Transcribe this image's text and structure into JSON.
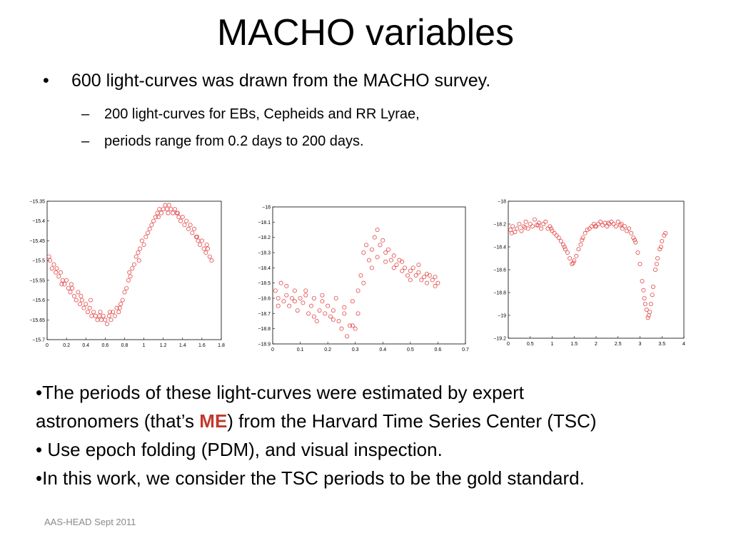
{
  "slide": {
    "title": "MACHO variables",
    "bullet_main": {
      "marker": "•",
      "text": "600 light-curves was drawn from the MACHO survey."
    },
    "sub_bullets": [
      {
        "marker": "–",
        "text": "200 light-curves for EBs, Cepheids and RR Lyrae,"
      },
      {
        "marker": "–",
        "text": "periods range from 0.2 days to 200 days."
      }
    ],
    "body": {
      "line1": "•The periods of these light-curves were estimated by expert",
      "line2_before": "astronomers (that’s ",
      "line2_me": "ME",
      "line2_after": ") from the Harvard Time Series Center (TSC)",
      "line3": "• Use epoch folding (PDM), and visual inspection.",
      "line4": "•In this work, we consider the TSC periods to be the gold standard."
    },
    "footer": "AAS-HEAD Sept 2011"
  },
  "chart_data": [
    {
      "type": "scatter",
      "marker_color": "#e34a4a",
      "xlim": [
        0,
        1.8
      ],
      "ylim": [
        -15.7,
        -15.35
      ],
      "y_inverted": true,
      "xticks": [
        "0",
        "0.2",
        "0.4",
        "0.6",
        "0.8",
        "1",
        "1.2",
        "1.4",
        "1.6",
        "1.8"
      ],
      "yticks": [
        "−15.35",
        "−15.4",
        "−15.45",
        "−15.5",
        "−15.55",
        "−15.6",
        "−15.65",
        "−15.7"
      ],
      "xtick_values": [
        0,
        0.2,
        0.4,
        0.6,
        0.8,
        1,
        1.2,
        1.4,
        1.6,
        1.8
      ],
      "ytick_values": [
        -15.35,
        -15.4,
        -15.45,
        -15.5,
        -15.55,
        -15.6,
        -15.65,
        -15.7
      ],
      "points": [
        [
          0.02,
          -15.49
        ],
        [
          0.03,
          -15.5
        ],
        [
          0.05,
          -15.52
        ],
        [
          0.07,
          -15.51
        ],
        [
          0.09,
          -15.53
        ],
        [
          0.1,
          -15.52
        ],
        [
          0.12,
          -15.54
        ],
        [
          0.14,
          -15.53
        ],
        [
          0.16,
          -15.55
        ],
        [
          0.18,
          -15.56
        ],
        [
          0.2,
          -15.55
        ],
        [
          0.22,
          -15.57
        ],
        [
          0.24,
          -15.58
        ],
        [
          0.26,
          -15.57
        ],
        [
          0.28,
          -15.59
        ],
        [
          0.3,
          -15.6
        ],
        [
          0.32,
          -15.58
        ],
        [
          0.34,
          -15.61
        ],
        [
          0.36,
          -15.6
        ],
        [
          0.38,
          -15.62
        ],
        [
          0.4,
          -15.61
        ],
        [
          0.42,
          -15.63
        ],
        [
          0.44,
          -15.62
        ],
        [
          0.46,
          -15.64
        ],
        [
          0.48,
          -15.63
        ],
        [
          0.5,
          -15.64
        ],
        [
          0.52,
          -15.65
        ],
        [
          0.54,
          -15.64
        ],
        [
          0.56,
          -15.65
        ],
        [
          0.58,
          -15.64
        ],
        [
          0.6,
          -15.65
        ],
        [
          0.62,
          -15.66
        ],
        [
          0.64,
          -15.64
        ],
        [
          0.66,
          -15.65
        ],
        [
          0.68,
          -15.63
        ],
        [
          0.7,
          -15.64
        ],
        [
          0.72,
          -15.62
        ],
        [
          0.74,
          -15.63
        ],
        [
          0.76,
          -15.61
        ],
        [
          0.78,
          -15.6
        ],
        [
          0.8,
          -15.58
        ],
        [
          0.82,
          -15.57
        ],
        [
          0.84,
          -15.55
        ],
        [
          0.86,
          -15.54
        ],
        [
          0.88,
          -15.52
        ],
        [
          0.9,
          -15.51
        ],
        [
          0.92,
          -15.49
        ],
        [
          0.94,
          -15.48
        ],
        [
          0.96,
          -15.47
        ],
        [
          0.98,
          -15.45
        ],
        [
          1.0,
          -15.46
        ],
        [
          1.02,
          -15.44
        ],
        [
          1.04,
          -15.43
        ],
        [
          1.06,
          -15.42
        ],
        [
          1.08,
          -15.41
        ],
        [
          1.1,
          -15.4
        ],
        [
          1.12,
          -15.39
        ],
        [
          1.14,
          -15.38
        ],
        [
          1.16,
          -15.37
        ],
        [
          1.18,
          -15.38
        ],
        [
          1.2,
          -15.37
        ],
        [
          1.22,
          -15.36
        ],
        [
          1.24,
          -15.37
        ],
        [
          1.26,
          -15.36
        ],
        [
          1.28,
          -15.37
        ],
        [
          1.3,
          -15.38
        ],
        [
          1.32,
          -15.37
        ],
        [
          1.34,
          -15.38
        ],
        [
          1.36,
          -15.39
        ],
        [
          1.38,
          -15.4
        ],
        [
          1.4,
          -15.39
        ],
        [
          1.42,
          -15.41
        ],
        [
          1.44,
          -15.4
        ],
        [
          1.46,
          -15.42
        ],
        [
          1.48,
          -15.41
        ],
        [
          1.5,
          -15.43
        ],
        [
          1.52,
          -15.42
        ],
        [
          1.54,
          -15.44
        ],
        [
          1.56,
          -15.45
        ],
        [
          1.58,
          -15.46
        ],
        [
          1.6,
          -15.45
        ],
        [
          1.62,
          -15.47
        ],
        [
          1.64,
          -15.48
        ],
        [
          1.66,
          -15.47
        ],
        [
          1.68,
          -15.49
        ],
        [
          1.7,
          -15.5
        ],
        [
          0.15,
          -15.56
        ],
        [
          0.35,
          -15.59
        ],
        [
          0.55,
          -15.63
        ],
        [
          0.75,
          -15.62
        ],
        [
          0.95,
          -15.5
        ],
        [
          1.15,
          -15.39
        ],
        [
          1.35,
          -15.38
        ],
        [
          1.55,
          -15.44
        ],
        [
          1.65,
          -15.46
        ],
        [
          0.25,
          -15.56
        ],
        [
          0.45,
          -15.6
        ],
        [
          0.65,
          -15.63
        ],
        [
          0.85,
          -15.53
        ],
        [
          1.25,
          -15.38
        ]
      ]
    },
    {
      "type": "scatter",
      "marker_color": "#e34a4a",
      "xlim": [
        0,
        0.7
      ],
      "ylim": [
        -18.9,
        -18
      ],
      "y_inverted": true,
      "xticks": [
        "0",
        "0.1",
        "0.2",
        "0.3",
        "0.4",
        "0.5",
        "0.6",
        "0.7"
      ],
      "yticks": [
        "−18",
        "−18.1",
        "−18.2",
        "−18.3",
        "−18.4",
        "−18.5",
        "−18.6",
        "−18.7",
        "−18.8",
        "−18.9"
      ],
      "xtick_values": [
        0,
        0.1,
        0.2,
        0.3,
        0.4,
        0.5,
        0.6,
        0.7
      ],
      "ytick_values": [
        -18,
        -18.1,
        -18.2,
        -18.3,
        -18.4,
        -18.5,
        -18.6,
        -18.7,
        -18.8,
        -18.9
      ],
      "points": [
        [
          0.01,
          -18.55
        ],
        [
          0.02,
          -18.6
        ],
        [
          0.03,
          -18.5
        ],
        [
          0.04,
          -18.62
        ],
        [
          0.05,
          -18.58
        ],
        [
          0.06,
          -18.65
        ],
        [
          0.07,
          -18.6
        ],
        [
          0.08,
          -18.55
        ],
        [
          0.09,
          -18.68
        ],
        [
          0.1,
          -18.6
        ],
        [
          0.11,
          -18.63
        ],
        [
          0.12,
          -18.58
        ],
        [
          0.13,
          -18.7
        ],
        [
          0.14,
          -18.65
        ],
        [
          0.15,
          -18.6
        ],
        [
          0.16,
          -18.75
        ],
        [
          0.17,
          -18.68
        ],
        [
          0.18,
          -18.62
        ],
        [
          0.19,
          -18.7
        ],
        [
          0.2,
          -18.65
        ],
        [
          0.21,
          -18.72
        ],
        [
          0.22,
          -18.68
        ],
        [
          0.23,
          -18.6
        ],
        [
          0.24,
          -18.75
        ],
        [
          0.25,
          -18.8
        ],
        [
          0.26,
          -18.7
        ],
        [
          0.27,
          -18.85
        ],
        [
          0.28,
          -18.78
        ],
        [
          0.29,
          -18.62
        ],
        [
          0.3,
          -18.8
        ],
        [
          0.31,
          -18.55
        ],
        [
          0.32,
          -18.45
        ],
        [
          0.33,
          -18.3
        ],
        [
          0.34,
          -18.25
        ],
        [
          0.35,
          -18.35
        ],
        [
          0.36,
          -18.28
        ],
        [
          0.37,
          -18.2
        ],
        [
          0.38,
          -18.15
        ],
        [
          0.39,
          -18.25
        ],
        [
          0.4,
          -18.22
        ],
        [
          0.41,
          -18.3
        ],
        [
          0.42,
          -18.28
        ],
        [
          0.43,
          -18.35
        ],
        [
          0.44,
          -18.32
        ],
        [
          0.45,
          -18.38
        ],
        [
          0.46,
          -18.35
        ],
        [
          0.47,
          -18.42
        ],
        [
          0.48,
          -18.4
        ],
        [
          0.49,
          -18.45
        ],
        [
          0.5,
          -18.42
        ],
        [
          0.51,
          -18.4
        ],
        [
          0.52,
          -18.45
        ],
        [
          0.53,
          -18.43
        ],
        [
          0.54,
          -18.48
        ],
        [
          0.55,
          -18.46
        ],
        [
          0.56,
          -18.5
        ],
        [
          0.57,
          -18.45
        ],
        [
          0.58,
          -18.48
        ],
        [
          0.59,
          -18.52
        ],
        [
          0.6,
          -18.5
        ],
        [
          0.02,
          -18.65
        ],
        [
          0.05,
          -18.52
        ],
        [
          0.08,
          -18.62
        ],
        [
          0.12,
          -18.55
        ],
        [
          0.15,
          -18.72
        ],
        [
          0.18,
          -18.58
        ],
        [
          0.22,
          -18.74
        ],
        [
          0.26,
          -18.66
        ],
        [
          0.29,
          -18.78
        ],
        [
          0.31,
          -18.7
        ],
        [
          0.33,
          -18.5
        ],
        [
          0.36,
          -18.4
        ],
        [
          0.38,
          -18.33
        ],
        [
          0.41,
          -18.36
        ],
        [
          0.44,
          -18.4
        ],
        [
          0.47,
          -18.36
        ],
        [
          0.5,
          -18.48
        ],
        [
          0.53,
          -18.38
        ],
        [
          0.56,
          -18.44
        ],
        [
          0.59,
          -18.46
        ]
      ]
    },
    {
      "type": "scatter",
      "marker_color": "#e34a4a",
      "xlim": [
        0,
        4
      ],
      "ylim": [
        -19.2,
        -18
      ],
      "y_inverted": true,
      "xticks": [
        "0",
        "0.5",
        "1",
        "1.5",
        "2",
        "2.5",
        "3",
        "3.5",
        "4"
      ],
      "yticks": [
        "−18",
        "−18.2",
        "−18.4",
        "−18.6",
        "−18.8",
        "−19",
        "−19.2"
      ],
      "xtick_values": [
        0,
        0.5,
        1,
        1.5,
        2,
        2.5,
        3,
        3.5,
        4
      ],
      "ytick_values": [
        -18,
        -18.2,
        -18.4,
        -18.6,
        -18.8,
        -19,
        -19.2
      ],
      "points": [
        [
          0.05,
          -18.25
        ],
        [
          0.1,
          -18.22
        ],
        [
          0.15,
          -18.27
        ],
        [
          0.2,
          -18.24
        ],
        [
          0.25,
          -18.2
        ],
        [
          0.3,
          -18.26
        ],
        [
          0.35,
          -18.22
        ],
        [
          0.4,
          -18.18
        ],
        [
          0.45,
          -18.24
        ],
        [
          0.5,
          -18.2
        ],
        [
          0.55,
          -18.22
        ],
        [
          0.6,
          -18.16
        ],
        [
          0.65,
          -18.21
        ],
        [
          0.7,
          -18.19
        ],
        [
          0.75,
          -18.24
        ],
        [
          0.8,
          -18.2
        ],
        [
          0.85,
          -18.18
        ],
        [
          0.9,
          -18.24
        ],
        [
          0.95,
          -18.22
        ],
        [
          1.0,
          -18.26
        ],
        [
          1.05,
          -18.28
        ],
        [
          1.1,
          -18.3
        ],
        [
          1.15,
          -18.32
        ],
        [
          1.2,
          -18.35
        ],
        [
          1.25,
          -18.38
        ],
        [
          1.3,
          -18.42
        ],
        [
          1.35,
          -18.45
        ],
        [
          1.4,
          -18.5
        ],
        [
          1.45,
          -18.55
        ],
        [
          1.5,
          -18.52
        ],
        [
          1.55,
          -18.48
        ],
        [
          1.6,
          -18.42
        ],
        [
          1.65,
          -18.38
        ],
        [
          1.7,
          -18.32
        ],
        [
          1.75,
          -18.28
        ],
        [
          1.8,
          -18.25
        ],
        [
          1.85,
          -18.24
        ],
        [
          1.9,
          -18.22
        ],
        [
          1.95,
          -18.2
        ],
        [
          2.0,
          -18.22
        ],
        [
          2.05,
          -18.2
        ],
        [
          2.1,
          -18.18
        ],
        [
          2.15,
          -18.21
        ],
        [
          2.2,
          -18.19
        ],
        [
          2.25,
          -18.22
        ],
        [
          2.3,
          -18.2
        ],
        [
          2.35,
          -18.18
        ],
        [
          2.4,
          -18.2
        ],
        [
          2.45,
          -18.22
        ],
        [
          2.5,
          -18.18
        ],
        [
          2.55,
          -18.21
        ],
        [
          2.6,
          -18.24
        ],
        [
          2.65,
          -18.22
        ],
        [
          2.7,
          -18.26
        ],
        [
          2.75,
          -18.24
        ],
        [
          2.8,
          -18.28
        ],
        [
          2.85,
          -18.32
        ],
        [
          2.9,
          -18.36
        ],
        [
          2.95,
          -18.45
        ],
        [
          3.0,
          -18.55
        ],
        [
          3.05,
          -18.7
        ],
        [
          3.1,
          -18.85
        ],
        [
          3.15,
          -18.95
        ],
        [
          3.2,
          -19.0
        ],
        [
          3.25,
          -18.9
        ],
        [
          3.3,
          -18.75
        ],
        [
          3.35,
          -18.6
        ],
        [
          3.4,
          -18.5
        ],
        [
          3.45,
          -18.42
        ],
        [
          3.5,
          -18.35
        ],
        [
          3.55,
          -18.3
        ],
        [
          0.08,
          -18.28
        ],
        [
          0.38,
          -18.23
        ],
        [
          0.68,
          -18.21
        ],
        [
          0.98,
          -18.24
        ],
        [
          1.28,
          -18.4
        ],
        [
          1.48,
          -18.54
        ],
        [
          1.68,
          -18.34
        ],
        [
          1.98,
          -18.22
        ],
        [
          2.28,
          -18.19
        ],
        [
          2.58,
          -18.2
        ],
        [
          2.88,
          -18.34
        ],
        [
          3.08,
          -18.78
        ],
        [
          3.18,
          -19.02
        ],
        [
          3.28,
          -18.82
        ],
        [
          3.38,
          -18.55
        ],
        [
          3.48,
          -18.4
        ],
        [
          3.58,
          -18.28
        ],
        [
          3.12,
          -18.9
        ],
        [
          3.22,
          -18.97
        ]
      ]
    }
  ]
}
